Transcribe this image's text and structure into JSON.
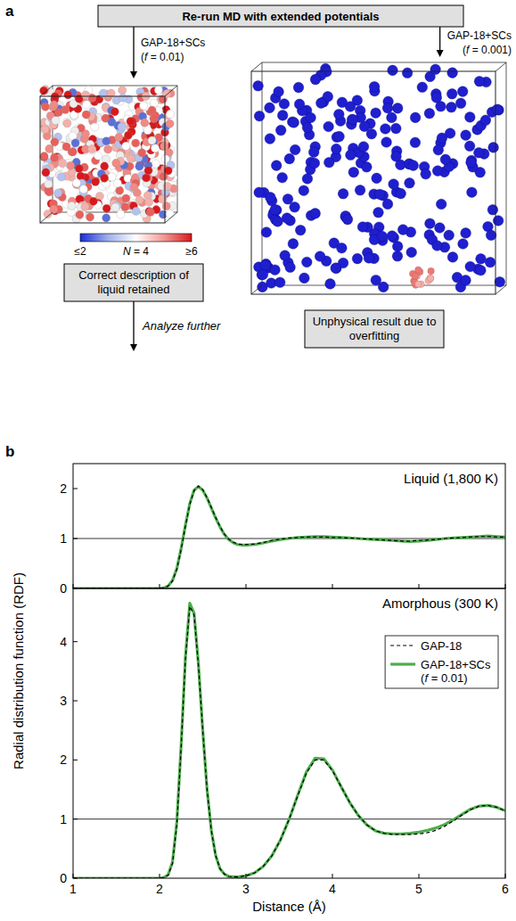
{
  "panel_a": {
    "letter": "a",
    "header": "Re-run MD with extended potentials",
    "branches": [
      {
        "potential": "GAP-18+SCs",
        "f_label": "(f = 0.01)",
        "caption": "Correct description of liquid retained"
      },
      {
        "potential": "GAP-18+SCs",
        "f_label": "(f = 0.001)",
        "caption": "Unphysical result due to overfitting"
      }
    ],
    "colorbar": {
      "labels": [
        "≤2",
        "N = 4",
        "≥6"
      ]
    },
    "next_step": "Analyze further"
  },
  "chart_data": [
    {
      "type": "line",
      "panel_label": "b",
      "title": "Liquid (1,800 K)",
      "x": [
        1,
        1.1,
        1.2,
        1.3,
        1.4,
        1.5,
        1.6,
        1.7,
        1.8,
        1.9,
        2,
        2.05,
        2.1,
        2.15,
        2.2,
        2.25,
        2.3,
        2.35,
        2.4,
        2.45,
        2.5,
        2.55,
        2.6,
        2.65,
        2.7,
        2.75,
        2.8,
        2.85,
        2.9,
        2.95,
        3,
        3.1,
        3.2,
        3.3,
        3.4,
        3.5,
        3.6,
        3.7,
        3.8,
        3.9,
        4,
        4.1,
        4.2,
        4.3,
        4.4,
        4.5,
        4.6,
        4.7,
        4.8,
        4.9,
        5,
        5.1,
        5.2,
        5.3,
        5.4,
        5.5,
        5.6,
        5.7,
        5.8,
        5.9,
        6
      ],
      "xlim": [
        1,
        6
      ],
      "xticks": [
        1,
        2,
        3,
        4,
        5,
        6
      ],
      "ylim": [
        0,
        2.5
      ],
      "yticks": [
        0,
        1,
        2
      ],
      "tick_labels": "y",
      "reference_y": 1,
      "series": [
        {
          "name": "GAP-18",
          "color": "#000000",
          "line_style": "dashed",
          "values": [
            0,
            0,
            0,
            0,
            0,
            0,
            0,
            0,
            0,
            0,
            0,
            0.01,
            0.05,
            0.15,
            0.38,
            0.78,
            1.25,
            1.68,
            1.96,
            2.05,
            1.98,
            1.82,
            1.62,
            1.42,
            1.24,
            1.09,
            0.99,
            0.93,
            0.89,
            0.88,
            0.88,
            0.89,
            0.92,
            0.96,
            0.99,
            1.01,
            1.02,
            1.03,
            1.03,
            1.03,
            1.02,
            1.02,
            1.01,
            1.0,
            0.99,
            0.98,
            0.97,
            0.96,
            0.95,
            0.95,
            0.96,
            0.97,
            0.98,
            1.0,
            1.01,
            1.02,
            1.03,
            1.04,
            1.04,
            1.03,
            1.03
          ]
        },
        {
          "name": "GAP-18+SCs (f = 0.01)",
          "color": "#4cad4c",
          "line_style": "solid",
          "values": [
            0,
            0,
            0,
            0,
            0,
            0,
            0,
            0,
            0,
            0,
            0,
            0.01,
            0.05,
            0.16,
            0.4,
            0.8,
            1.27,
            1.7,
            1.97,
            2.04,
            1.97,
            1.81,
            1.61,
            1.41,
            1.23,
            1.08,
            0.98,
            0.92,
            0.88,
            0.87,
            0.87,
            0.88,
            0.91,
            0.95,
            0.98,
            1.0,
            1.02,
            1.03,
            1.04,
            1.04,
            1.03,
            1.02,
            1.01,
            1.0,
            0.99,
            0.98,
            0.97,
            0.96,
            0.95,
            0.94,
            0.95,
            0.96,
            0.98,
            1.0,
            1.01,
            1.02,
            1.03,
            1.04,
            1.05,
            1.04,
            1.03
          ]
        }
      ]
    },
    {
      "type": "line",
      "title": "Amorphous (300 K)",
      "xlabel": "Distance (Å)",
      "ylabel": "Radial distribution function (RDF)",
      "x": [
        1,
        1.1,
        1.2,
        1.3,
        1.4,
        1.5,
        1.6,
        1.7,
        1.8,
        1.9,
        2,
        2.05,
        2.1,
        2.15,
        2.2,
        2.25,
        2.3,
        2.35,
        2.4,
        2.45,
        2.5,
        2.55,
        2.6,
        2.65,
        2.7,
        2.75,
        2.8,
        2.9,
        3,
        3.1,
        3.2,
        3.3,
        3.4,
        3.5,
        3.6,
        3.7,
        3.8,
        3.9,
        4,
        4.1,
        4.2,
        4.3,
        4.4,
        4.5,
        4.6,
        4.7,
        4.8,
        4.9,
        5,
        5.1,
        5.2,
        5.3,
        5.4,
        5.5,
        5.6,
        5.7,
        5.8,
        5.9,
        6
      ],
      "xlim": [
        1,
        6
      ],
      "xticks": [
        1,
        2,
        3,
        4,
        5,
        6
      ],
      "ylim": [
        0,
        4.9
      ],
      "yticks": [
        0,
        1,
        2,
        3,
        4
      ],
      "tick_labels": true,
      "reference_y": 1,
      "legend": "upper right",
      "series": [
        {
          "name": "GAP-18",
          "color": "#000000",
          "line_style": "dashed",
          "values": [
            0,
            0,
            0,
            0,
            0,
            0,
            0,
            0,
            0,
            0,
            0,
            0.01,
            0.05,
            0.25,
            0.9,
            2.2,
            3.7,
            4.6,
            4.45,
            3.6,
            2.5,
            1.5,
            0.8,
            0.38,
            0.16,
            0.07,
            0.03,
            0.02,
            0.04,
            0.09,
            0.2,
            0.38,
            0.65,
            1.0,
            1.4,
            1.78,
            2.0,
            2.0,
            1.82,
            1.55,
            1.28,
            1.06,
            0.9,
            0.8,
            0.76,
            0.74,
            0.74,
            0.74,
            0.75,
            0.77,
            0.81,
            0.88,
            0.97,
            1.07,
            1.16,
            1.22,
            1.23,
            1.2,
            1.14
          ]
        },
        {
          "name": "GAP-18+SCs (f = 0.01)",
          "color": "#4cad4c",
          "line_style": "solid",
          "values": [
            0,
            0,
            0,
            0,
            0,
            0,
            0,
            0,
            0,
            0,
            0,
            0.01,
            0.06,
            0.27,
            0.95,
            2.25,
            3.75,
            4.65,
            4.48,
            3.62,
            2.5,
            1.5,
            0.8,
            0.38,
            0.16,
            0.07,
            0.03,
            0.02,
            0.04,
            0.09,
            0.2,
            0.38,
            0.65,
            1.0,
            1.41,
            1.8,
            2.03,
            2.02,
            1.83,
            1.55,
            1.28,
            1.06,
            0.9,
            0.8,
            0.76,
            0.75,
            0.75,
            0.76,
            0.78,
            0.81,
            0.85,
            0.91,
            0.99,
            1.08,
            1.17,
            1.22,
            1.23,
            1.2,
            1.14
          ]
        }
      ]
    }
  ]
}
